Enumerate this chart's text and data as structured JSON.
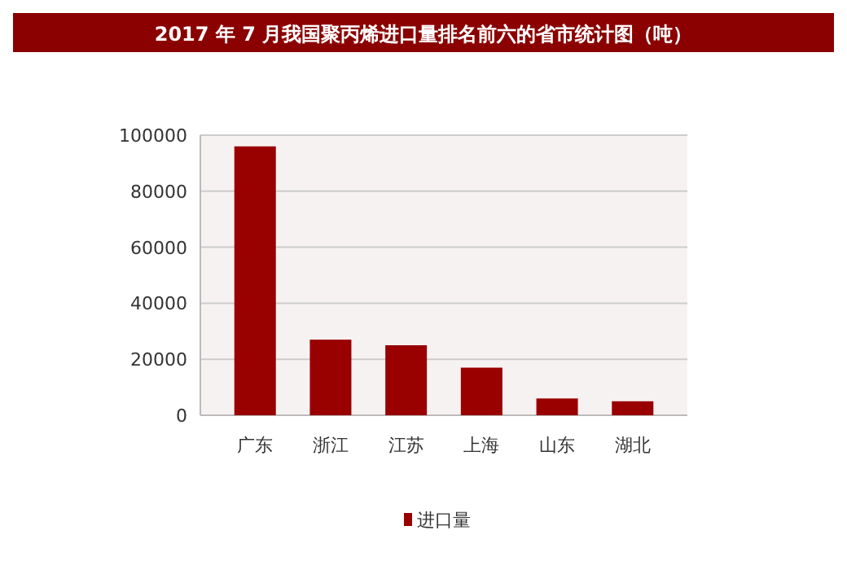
{
  "chart_data": {
    "type": "bar",
    "title": "2017 年 7 月我国聚丙烯进口量排名前六的省市统计图（吨）",
    "categories": [
      "广东",
      "浙江",
      "江苏",
      "上海",
      "山东",
      "湖北"
    ],
    "series": [
      {
        "name": "进口量",
        "color": "#990000",
        "values": [
          96000,
          27000,
          25000,
          17000,
          6000,
          5000
        ]
      }
    ],
    "ylim": [
      0,
      100000
    ],
    "yticks": [
      0,
      20000,
      40000,
      60000,
      80000,
      100000
    ],
    "grid": "y",
    "legend": "bottom"
  }
}
